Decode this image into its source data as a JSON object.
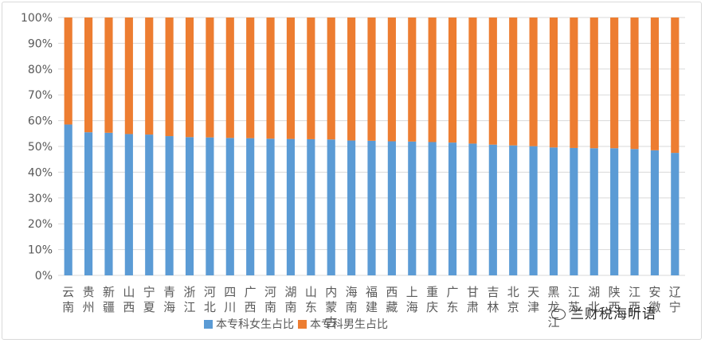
{
  "chart_data": {
    "type": "bar",
    "stacked": true,
    "title": "",
    "xlabel": "",
    "ylabel": "",
    "ylim": [
      0,
      100
    ],
    "y_ticks": [
      "0%",
      "10%",
      "20%",
      "30%",
      "40%",
      "50%",
      "60%",
      "70%",
      "80%",
      "90%",
      "100%"
    ],
    "grid": true,
    "legend_position": "bottom-left",
    "categories": [
      "云南",
      "贵州",
      "新疆",
      "山西",
      "宁夏",
      "青海",
      "浙江",
      "河北",
      "四川",
      "广西",
      "河南",
      "湖南",
      "山东",
      "内蒙古",
      "海南",
      "福建",
      "西藏",
      "上海",
      "重庆",
      "广东",
      "甘肃",
      "吉林",
      "北京",
      "天津",
      "黑龙江",
      "江苏",
      "湖北",
      "陕西",
      "江西",
      "安徽",
      "辽宁"
    ],
    "series": [
      {
        "name": "本专科女生占比",
        "color": "#5b9bd5",
        "values": [
          58.5,
          55.5,
          55.3,
          54.8,
          54.6,
          54.0,
          53.6,
          53.5,
          53.3,
          53.2,
          53.0,
          52.9,
          52.8,
          52.7,
          52.3,
          52.2,
          52.0,
          51.9,
          51.7,
          51.5,
          51.1,
          50.7,
          50.4,
          50.1,
          49.6,
          49.4,
          49.3,
          49.3,
          49.0,
          48.5,
          47.5
        ]
      },
      {
        "name": "本专科男生占比",
        "color": "#ed7d31",
        "values": [
          41.5,
          44.5,
          44.7,
          45.2,
          45.4,
          46.0,
          46.4,
          46.5,
          46.7,
          46.8,
          47.0,
          47.1,
          47.2,
          47.3,
          47.7,
          47.8,
          48.0,
          48.1,
          48.3,
          48.5,
          48.9,
          49.3,
          49.6,
          49.9,
          50.4,
          50.6,
          50.7,
          50.7,
          51.0,
          51.5,
          52.5
        ]
      }
    ]
  },
  "watermark": "兰财税海听语",
  "watermark_icon": "wechat-bubble-icon"
}
